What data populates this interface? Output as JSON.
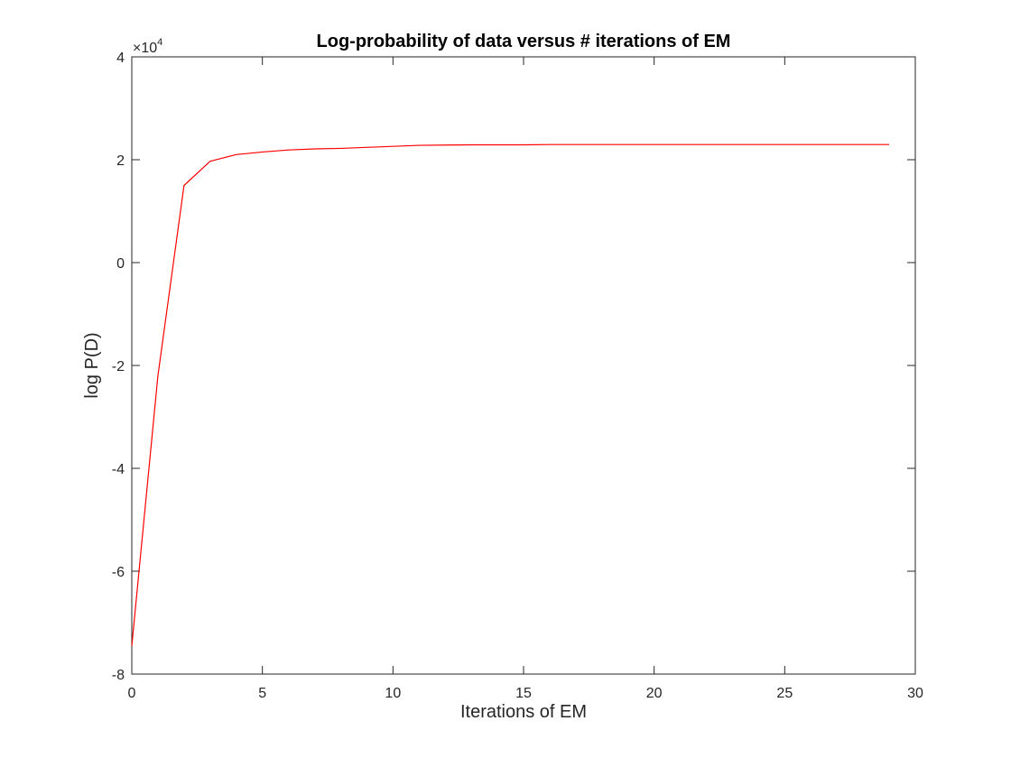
{
  "chart_data": {
    "type": "line",
    "title": "Log-probability of data versus # iterations of EM",
    "xlabel": "Iterations of EM",
    "ylabel": "log P(D)",
    "xlim": [
      0,
      30
    ],
    "ylim": [
      -8,
      4
    ],
    "y_exponent_label": {
      "times": "×10",
      "power": "4"
    },
    "xticks": [
      0,
      5,
      10,
      15,
      20,
      25,
      30
    ],
    "xtick_labels": [
      "0",
      "5",
      "10",
      "15",
      "20",
      "25",
      "30"
    ],
    "yticks": [
      -8,
      -6,
      -4,
      -2,
      0,
      2,
      4
    ],
    "ytick_labels": [
      "-8",
      "-6",
      "-4",
      "-2",
      "0",
      "2",
      "4"
    ],
    "grid": false,
    "box": true,
    "colors": {
      "line": "#ff0000",
      "axes": "#262626"
    },
    "series": [
      {
        "x": [
          0,
          1,
          2,
          3,
          4,
          5,
          6,
          7,
          8,
          9,
          10,
          11,
          12,
          13,
          14,
          15,
          16,
          17,
          18,
          19,
          20,
          21,
          22,
          23,
          24,
          25,
          26,
          27,
          28,
          29
        ],
        "y": [
          -7.45,
          -2.2,
          1.5,
          1.97,
          2.1,
          2.15,
          2.19,
          2.21,
          2.22,
          2.24,
          2.26,
          2.28,
          2.285,
          2.29,
          2.29,
          2.29,
          2.295,
          2.295,
          2.295,
          2.295,
          2.295,
          2.295,
          2.295,
          2.295,
          2.295,
          2.295,
          2.295,
          2.295,
          2.295,
          2.295
        ]
      }
    ]
  }
}
